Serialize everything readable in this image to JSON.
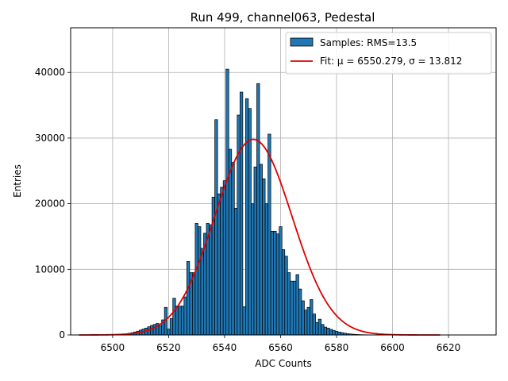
{
  "chart_data": {
    "type": "bar",
    "title": "Run 499, channel063, Pedestal",
    "xlabel": "ADC Counts",
    "ylabel": "Entries",
    "xlim": [
      6485,
      6637
    ],
    "ylim": [
      0,
      46800
    ],
    "xticks": [
      6500,
      6520,
      6540,
      6560,
      6580,
      6600,
      6620
    ],
    "yticks": [
      0,
      10000,
      20000,
      30000,
      40000
    ],
    "grid": true,
    "legend_position": "top-right",
    "colors": {
      "bar": "#1f77b4",
      "fit": "#dd0000",
      "grid": "#b0b0b0"
    },
    "series": [
      {
        "name": "Samples: RMS=13.5",
        "kind": "histogram",
        "x": [
          6500,
          6501,
          6502,
          6503,
          6504,
          6505,
          6506,
          6507,
          6508,
          6509,
          6510,
          6511,
          6512,
          6513,
          6514,
          6515,
          6516,
          6517,
          6518,
          6519,
          6520,
          6521,
          6522,
          6523,
          6524,
          6525,
          6526,
          6527,
          6528,
          6529,
          6530,
          6531,
          6532,
          6533,
          6534,
          6535,
          6536,
          6537,
          6538,
          6539,
          6540,
          6541,
          6542,
          6543,
          6544,
          6545,
          6546,
          6547,
          6548,
          6549,
          6550,
          6551,
          6552,
          6553,
          6554,
          6555,
          6556,
          6557,
          6558,
          6559,
          6560,
          6561,
          6562,
          6563,
          6564,
          6565,
          6566,
          6567,
          6568,
          6569,
          6570,
          6571,
          6572,
          6573,
          6574,
          6575,
          6576,
          6577,
          6578,
          6579,
          6580,
          6581,
          6582,
          6583,
          6584,
          6585,
          6586,
          6587,
          6588,
          6589,
          6590,
          6591,
          6592,
          6593,
          6594,
          6595,
          6596,
          6597,
          6598,
          6599,
          6600
        ],
        "values": [
          40,
          60,
          80,
          110,
          150,
          200,
          260,
          340,
          450,
          580,
          740,
          900,
          1050,
          1250,
          1450,
          1600,
          1750,
          1400,
          2300,
          4200,
          900,
          2500,
          5600,
          4400,
          4400,
          4400,
          5800,
          11200,
          9500,
          9500,
          17000,
          16500,
          13200,
          15500,
          17000,
          16800,
          21000,
          32800,
          21500,
          22500,
          23500,
          40500,
          28300,
          26300,
          19300,
          33500,
          37000,
          4300,
          36000,
          34500,
          20000,
          25600,
          38300,
          26000,
          23800,
          20000,
          30600,
          15800,
          15800,
          15400,
          16500,
          13000,
          12000,
          9500,
          8200,
          8200,
          9200,
          7000,
          5200,
          3800,
          4200,
          5400,
          3200,
          1900,
          2400,
          1600,
          1200,
          1050,
          850,
          700,
          550,
          450,
          350,
          270,
          200,
          150,
          110,
          80,
          60,
          40,
          30,
          20,
          15,
          10,
          8,
          5,
          4,
          3,
          2,
          1,
          1
        ]
      },
      {
        "name": "Fit: μ = 6550.279, σ = 13.812",
        "kind": "gaussian-fit",
        "mu": 6550.279,
        "sigma": 13.812,
        "amplitude": 29800,
        "x_range": [
          6488,
          6617
        ]
      }
    ]
  }
}
